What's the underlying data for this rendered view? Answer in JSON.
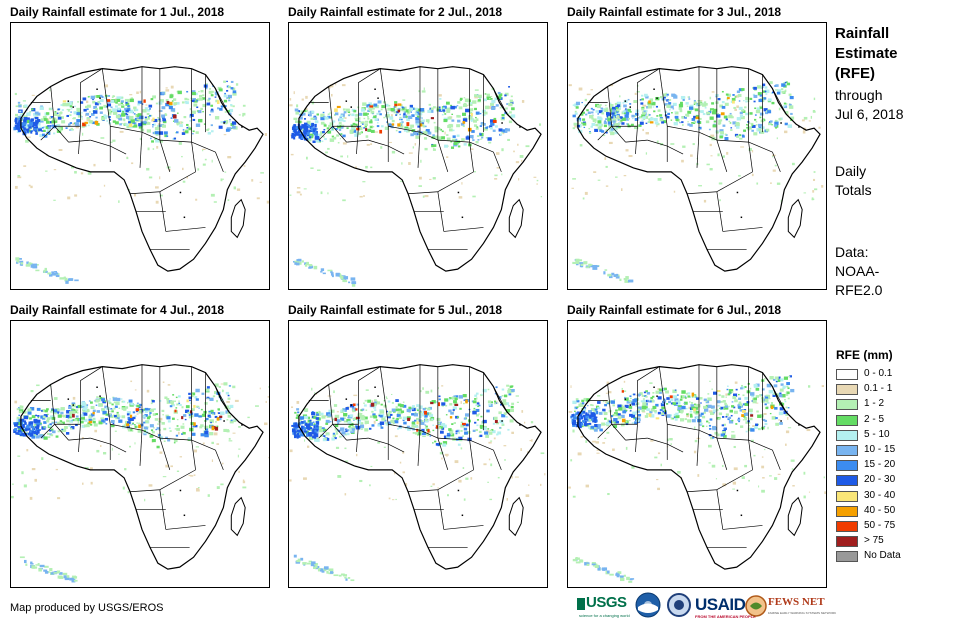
{
  "panels": [
    {
      "title": "Daily Rainfall estimate for 1 Jul., 2018"
    },
    {
      "title": "Daily Rainfall estimate for 2 Jul., 2018"
    },
    {
      "title": "Daily Rainfall estimate for 3 Jul., 2018"
    },
    {
      "title": "Daily Rainfall estimate for 4 Jul., 2018"
    },
    {
      "title": "Daily Rainfall estimate for 5 Jul., 2018"
    },
    {
      "title": "Daily Rainfall estimate for 6 Jul., 2018"
    }
  ],
  "side": {
    "title_lines": [
      "Rainfall",
      "Estimate",
      "(RFE)"
    ],
    "through_lines": [
      "through",
      "Jul 6, 2018"
    ],
    "totals_lines": [
      "Daily",
      "Totals"
    ],
    "data_lines": [
      "Data:",
      "NOAA-",
      "RFE2.0"
    ]
  },
  "legend": {
    "title": "RFE (mm)",
    "items": [
      {
        "label": "0 - 0.1",
        "color": "#ffffff"
      },
      {
        "label": "0.1 - 1",
        "color": "#e8d8b4"
      },
      {
        "label": "1 - 2",
        "color": "#b4f0b4"
      },
      {
        "label": "2 - 5",
        "color": "#64dc64"
      },
      {
        "label": "5 - 10",
        "color": "#b4f0f0"
      },
      {
        "label": "10 - 15",
        "color": "#78b4f0"
      },
      {
        "label": "15 - 20",
        "color": "#3c8cf0"
      },
      {
        "label": "20 - 30",
        "color": "#1e5ae6"
      },
      {
        "label": "30 - 40",
        "color": "#fae678"
      },
      {
        "label": "40 - 50",
        "color": "#f5a000"
      },
      {
        "label": "50 - 75",
        "color": "#f03c00"
      },
      {
        "label": "> 75",
        "color": "#a01e1e"
      },
      {
        "label": "No Data",
        "color": "#999999"
      }
    ]
  },
  "footer": {
    "credit": "Map produced by USGS/EROS"
  },
  "logos": {
    "usgs": "USGS",
    "usgs_tagline": "science for a changing world",
    "usaid": "USAID",
    "usaid_tagline": "FROM THE AMERICAN PEOPLE",
    "fewsnet": "FEWS NET",
    "fewsnet_tagline": "FAMINE EARLY WARNING SYSTEMS NETWORK"
  }
}
